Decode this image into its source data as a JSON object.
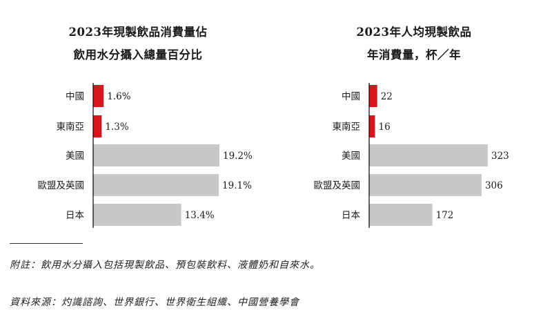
{
  "colors": {
    "highlight": "#d7161f",
    "bar": "#c8c8c9",
    "axis": "#000000"
  },
  "chart_data": [
    {
      "type": "bar",
      "orientation": "horizontal",
      "title_lines": [
        "2023年現製飲品消費量佔",
        "飲用水分攝入總量百分比"
      ],
      "categories": [
        "中國",
        "東南亞",
        "美國",
        "歐盟及英國",
        "日本"
      ],
      "values": [
        1.6,
        1.3,
        19.2,
        19.1,
        13.4
      ],
      "value_labels": [
        "1.6%",
        "1.3%",
        "19.2%",
        "19.1%",
        "13.4%"
      ],
      "highlighted": [
        true,
        true,
        false,
        false,
        false
      ],
      "xlim": [
        0,
        19.2
      ]
    },
    {
      "type": "bar",
      "orientation": "horizontal",
      "title_lines": [
        "2023年人均現製飲品",
        "年消費量，杯／年"
      ],
      "categories": [
        "中國",
        "東南亞",
        "美國",
        "歐盟及英國",
        "日本"
      ],
      "values": [
        22,
        16,
        323,
        306,
        172
      ],
      "value_labels": [
        "22",
        "16",
        "323",
        "306",
        "172"
      ],
      "highlighted": [
        true,
        true,
        false,
        false,
        false
      ],
      "xlim": [
        0,
        323
      ]
    }
  ],
  "notes": {
    "note": "附註：飲用水分攝入包括現製飲品、預包裝飲料、液體奶和自來水。",
    "source": "資料來源：灼識諮詢、世界銀行、世界衛生組織、中國營養學會"
  }
}
